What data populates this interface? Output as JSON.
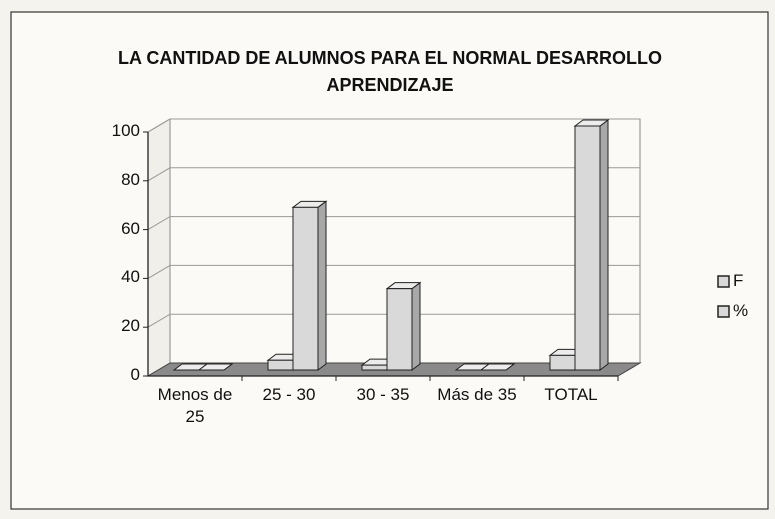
{
  "chart_data": {
    "type": "bar3d",
    "title": "LA CANTIDAD DE ALUMNOS PARA EL NORMAL DESARROLLO APRENDIZAJE",
    "categories": [
      "Menos de 25",
      "25 - 30",
      "30 - 35",
      "Más de 35",
      "TOTAL"
    ],
    "series": [
      {
        "name": "F",
        "color": "#d9d9d9",
        "values": [
          0,
          4,
          2,
          0,
          6
        ]
      },
      {
        "name": "%",
        "color": "#d9d9d9",
        "values": [
          0,
          66.67,
          33.33,
          0,
          100
        ]
      }
    ],
    "ylim": [
      0,
      100
    ],
    "yticks": [
      0,
      20,
      40,
      60,
      80,
      100
    ],
    "grid": true,
    "legend": "right"
  }
}
